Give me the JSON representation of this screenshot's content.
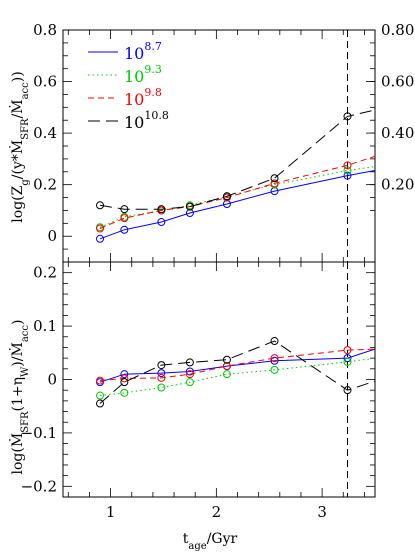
{
  "chart_data": [
    {
      "type": "line",
      "panel": "top",
      "ylabel": "log(Z_g/(y*Ṁ_SFR/Ṁ_acc))",
      "ylim": [
        -0.1,
        0.8
      ],
      "xlim": [
        0.55,
        3.5
      ],
      "yticks": [
        "0",
        "0.2",
        "0.4",
        "0.6",
        "0.8"
      ],
      "right_axis_labels": [
        "0.80",
        "0.60",
        "0.40",
        "0.20"
      ],
      "right_axis_at": [
        0.8,
        0.6,
        0.4,
        0.2
      ],
      "vertical_line_x": 3.24,
      "legend": {
        "placement": "top-left",
        "entries": [
          {
            "base": "10",
            "exp": "8.7"
          },
          {
            "base": "10",
            "exp": "9.3"
          },
          {
            "base": "10",
            "exp": "9.8"
          },
          {
            "base": "10",
            "exp": "10.8"
          }
        ]
      },
      "series": [
        {
          "color": "#0000ff",
          "dash": "none",
          "points": [
            [
              0.9,
              -0.01
            ],
            [
              1.13,
              0.025
            ],
            [
              1.48,
              0.055
            ],
            [
              1.75,
              0.09
            ],
            [
              2.1,
              0.125
            ],
            [
              2.55,
              0.175
            ],
            [
              3.24,
              0.235
            ],
            [
              3.5,
              0.255
            ]
          ],
          "markers": [
            [
              0.9,
              -0.01
            ],
            [
              1.13,
              0.025
            ],
            [
              1.48,
              0.055
            ],
            [
              1.75,
              0.09
            ],
            [
              2.1,
              0.125
            ],
            [
              2.55,
              0.175
            ],
            [
              3.24,
              0.235
            ]
          ]
        },
        {
          "color": "#00cc00",
          "dash": "1.5,3",
          "points": [
            [
              0.9,
              0.035
            ],
            [
              1.13,
              0.075
            ],
            [
              1.48,
              0.1
            ],
            [
              1.75,
              0.12
            ],
            [
              2.1,
              0.155
            ],
            [
              2.55,
              0.2
            ],
            [
              3.24,
              0.255
            ],
            [
              3.5,
              0.27
            ]
          ],
          "markers": [
            [
              0.9,
              0.035
            ],
            [
              1.13,
              0.075
            ],
            [
              1.48,
              0.1
            ],
            [
              1.75,
              0.12
            ],
            [
              2.1,
              0.155
            ],
            [
              2.55,
              0.2
            ],
            [
              3.24,
              0.255
            ]
          ]
        },
        {
          "color": "#ff0000",
          "dash": "6,4",
          "points": [
            [
              0.9,
              0.03
            ],
            [
              1.13,
              0.07
            ],
            [
              1.48,
              0.1
            ],
            [
              1.75,
              0.115
            ],
            [
              2.1,
              0.15
            ],
            [
              2.55,
              0.205
            ],
            [
              3.24,
              0.275
            ],
            [
              3.5,
              0.31
            ]
          ],
          "markers": [
            [
              0.9,
              0.03
            ],
            [
              1.13,
              0.07
            ],
            [
              1.48,
              0.1
            ],
            [
              1.75,
              0.115
            ],
            [
              2.1,
              0.15
            ],
            [
              2.55,
              0.205
            ],
            [
              3.24,
              0.275
            ]
          ]
        },
        {
          "color": "#000000",
          "dash": "12,6",
          "points": [
            [
              0.9,
              0.12
            ],
            [
              1.13,
              0.105
            ],
            [
              1.48,
              0.105
            ],
            [
              1.75,
              0.115
            ],
            [
              2.1,
              0.155
            ],
            [
              2.55,
              0.225
            ],
            [
              3.24,
              0.465
            ],
            [
              3.5,
              0.49
            ]
          ],
          "markers": [
            [
              0.9,
              0.12
            ],
            [
              1.13,
              0.105
            ],
            [
              1.48,
              0.105
            ],
            [
              1.75,
              0.115
            ],
            [
              2.1,
              0.155
            ],
            [
              2.55,
              0.225
            ],
            [
              3.24,
              0.465
            ]
          ]
        }
      ]
    },
    {
      "type": "line",
      "panel": "bottom",
      "xlabel": "t_age/Gyr",
      "ylabel": "log(Ṁ_SFR(1+η_W)/Ṁ_acc)",
      "ylim": [
        -0.22,
        0.22
      ],
      "xlim": [
        0.55,
        3.5
      ],
      "yticks": [
        "−0.2",
        "−0.1",
        "0",
        "0.1",
        "0.2"
      ],
      "xticks": [
        "1",
        "2",
        "3"
      ],
      "vertical_line_x": 3.24,
      "series": [
        {
          "color": "#0000ff",
          "dash": "none",
          "points": [
            [
              0.9,
              -0.005
            ],
            [
              1.13,
              0.01
            ],
            [
              1.48,
              0.012
            ],
            [
              1.75,
              0.015
            ],
            [
              2.1,
              0.025
            ],
            [
              2.55,
              0.035
            ],
            [
              3.24,
              0.04
            ],
            [
              3.5,
              0.057
            ]
          ],
          "markers": [
            [
              0.9,
              -0.005
            ],
            [
              1.13,
              0.01
            ],
            [
              1.48,
              0.012
            ],
            [
              1.75,
              0.015
            ],
            [
              2.1,
              0.025
            ],
            [
              2.55,
              0.035
            ],
            [
              3.24,
              0.04
            ]
          ]
        },
        {
          "color": "#00cc00",
          "dash": "1.5,3",
          "points": [
            [
              0.9,
              -0.03
            ],
            [
              1.13,
              -0.025
            ],
            [
              1.48,
              -0.015
            ],
            [
              1.75,
              -0.005
            ],
            [
              2.1,
              0.01
            ],
            [
              2.55,
              0.018
            ],
            [
              3.24,
              0.033
            ],
            [
              3.5,
              0.04
            ]
          ],
          "markers": [
            [
              0.9,
              -0.03
            ],
            [
              1.13,
              -0.025
            ],
            [
              1.48,
              -0.015
            ],
            [
              1.75,
              -0.005
            ],
            [
              2.1,
              0.01
            ],
            [
              2.55,
              0.018
            ],
            [
              3.24,
              0.033
            ]
          ]
        },
        {
          "color": "#ff0000",
          "dash": "6,4",
          "points": [
            [
              0.9,
              -0.002
            ],
            [
              1.13,
              0.002
            ],
            [
              1.48,
              0.003
            ],
            [
              1.75,
              0.01
            ],
            [
              2.1,
              0.025
            ],
            [
              2.55,
              0.04
            ],
            [
              3.24,
              0.055
            ],
            [
              3.5,
              0.057
            ]
          ],
          "markers": [
            [
              0.9,
              -0.002
            ],
            [
              1.13,
              0.002
            ],
            [
              1.48,
              0.003
            ],
            [
              1.75,
              0.01
            ],
            [
              2.1,
              0.025
            ],
            [
              2.55,
              0.04
            ],
            [
              3.24,
              0.055
            ]
          ]
        },
        {
          "color": "#000000",
          "dash": "12,6",
          "points": [
            [
              0.9,
              -0.045
            ],
            [
              1.13,
              -0.005
            ],
            [
              1.48,
              0.027
            ],
            [
              1.75,
              0.032
            ],
            [
              2.1,
              0.037
            ],
            [
              2.55,
              0.072
            ],
            [
              3.24,
              -0.02
            ],
            [
              3.5,
              -0.003
            ]
          ],
          "markers": [
            [
              0.9,
              -0.045
            ],
            [
              1.13,
              -0.005
            ],
            [
              1.48,
              0.027
            ],
            [
              1.75,
              0.032
            ],
            [
              2.1,
              0.037
            ],
            [
              2.55,
              0.072
            ],
            [
              3.24,
              -0.02
            ]
          ]
        }
      ]
    }
  ]
}
